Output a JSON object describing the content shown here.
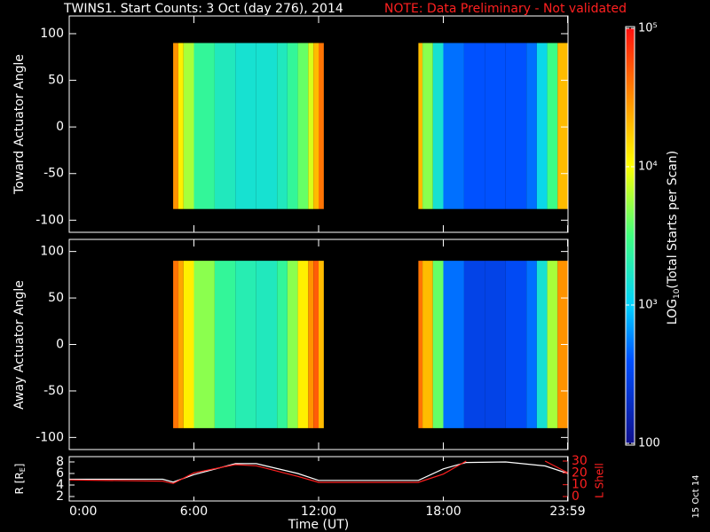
{
  "chart_data": [
    {
      "type": "heatmap",
      "title": "TWINS1. Start Counts:  3 Oct (day 276), 2014",
      "note": "NOTE: Data Preliminary - Not validated",
      "y_label": "Toward Actuator Angle",
      "xlim": [
        0,
        24
      ],
      "ylim": [
        -113,
        119
      ],
      "yticks": [
        -100,
        -50,
        0,
        50,
        100
      ],
      "x_bins": [
        5,
        5.25,
        5.5,
        6,
        7,
        8,
        9,
        10,
        10.5,
        11,
        11.5,
        11.75,
        12,
        12.25,
        16.8,
        17,
        17.5,
        18,
        19,
        20,
        21,
        22,
        22.5,
        23,
        23.5,
        24
      ],
      "y_bins": [
        -88,
        90
      ],
      "values": [
        30000,
        12000,
        6000,
        2500,
        1800,
        1500,
        1500,
        1800,
        2500,
        4000,
        8000,
        20000,
        40000,
        null,
        20000,
        5000,
        1500,
        500,
        400,
        400,
        400,
        500,
        1200,
        3000,
        20000
      ],
      "colorbar": {
        "zlim": [
          100,
          100000
        ],
        "log": true,
        "ticks": [
          {
            "value": 100,
            "label": "100"
          },
          {
            "value": 1000,
            "label": "10³"
          },
          {
            "value": 10000,
            "label": "10⁴"
          },
          {
            "value": 100000,
            "label": "10⁵"
          }
        ],
        "label_pre": "LOG",
        "label_sub": "10",
        "label_post": "(Total Starts per Scan)"
      }
    },
    {
      "type": "heatmap",
      "y_label": "Away Actuator Angle",
      "xlim": [
        0,
        24
      ],
      "ylim": [
        -113,
        113
      ],
      "yticks": [
        -100,
        -50,
        0,
        50,
        100
      ],
      "x_bins": [
        5,
        5.25,
        5.5,
        6,
        7,
        8,
        9,
        10,
        10.5,
        11,
        11.5,
        11.75,
        12,
        12.25,
        16.8,
        17,
        17.5,
        18,
        19,
        20,
        21,
        22,
        22.5,
        23,
        23.5,
        24
      ],
      "y_bins": [
        -90,
        90
      ],
      "values": [
        40000,
        25000,
        12000,
        5000,
        2500,
        2000,
        1800,
        2500,
        5000,
        12000,
        30000,
        50000,
        20000,
        null,
        40000,
        20000,
        4000,
        500,
        300,
        300,
        350,
        500,
        1500,
        6000,
        30000
      ]
    },
    {
      "type": "line",
      "x_label": "Time (UT)",
      "y_label_pre": "R [R",
      "y_label_sub": "E",
      "y_label_post": "]",
      "y2_label": "L Shell",
      "stamp": "15 Oct 14",
      "xlim": [
        0,
        24
      ],
      "xticks": [
        {
          "value": 0,
          "label": "0:00"
        },
        {
          "value": 6,
          "label": "6:00"
        },
        {
          "value": 12,
          "label": "12:00"
        },
        {
          "value": 18,
          "label": "18:00"
        },
        {
          "value": 23.98,
          "label": "23:59"
        }
      ],
      "ylim": [
        1.23,
        8.92
      ],
      "yticks": [
        2,
        4,
        6,
        8
      ],
      "y2lim": [
        -3.75,
        33.75
      ],
      "y2ticks": [
        0,
        10,
        20,
        30
      ],
      "x": [
        0,
        4.5,
        5,
        6,
        8,
        9,
        11,
        12,
        16.8,
        18,
        19.1,
        21,
        22.9,
        24
      ],
      "series": [
        {
          "color": "#ffffff",
          "values": [
            5,
            5,
            4.5,
            5.8,
            7.7,
            7.7,
            6,
            4.8,
            4.8,
            6.8,
            7.9,
            8,
            7.3,
            6
          ]
        },
        {
          "color": "#ff2020",
          "axis": "y2",
          "values": [
            14,
            13,
            11,
            20,
            27,
            26,
            17,
            12,
            12,
            19,
            30,
            null,
            30,
            20
          ]
        }
      ]
    }
  ]
}
